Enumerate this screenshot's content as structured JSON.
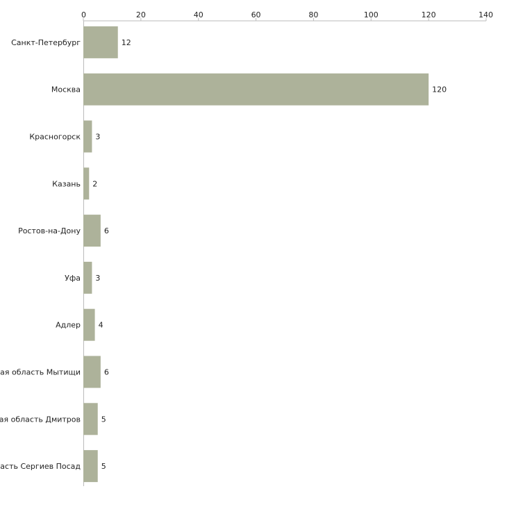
{
  "chart_data": {
    "type": "bar",
    "orientation": "horizontal",
    "title": "",
    "xlabel": "",
    "ylabel": "",
    "xlim": [
      0,
      140
    ],
    "ticks": [
      0,
      20,
      40,
      60,
      80,
      100,
      120,
      140
    ],
    "tick_labels": [
      "0",
      "20",
      "40",
      "60",
      "80",
      "100",
      "120",
      "140"
    ],
    "categories": [
      "Санкт-Петербург",
      "Москва",
      "Красногорск",
      "Казань",
      "Ростов-на-Дону",
      "Уфа",
      "Адлер",
      "Московская область Мытищи",
      "Московская область Дмитров",
      "Московская область Сергиев Посад"
    ],
    "values": [
      12,
      120,
      3,
      2,
      6,
      3,
      4,
      6,
      5,
      5
    ],
    "value_labels": [
      "12",
      "120",
      "3",
      "2",
      "6",
      "3",
      "4",
      "6",
      "5",
      "5"
    ],
    "legend": "none",
    "grid": false,
    "colors": {
      "bar": "#adb29a",
      "axis": "#bbbbbb",
      "text": "#222222"
    }
  }
}
